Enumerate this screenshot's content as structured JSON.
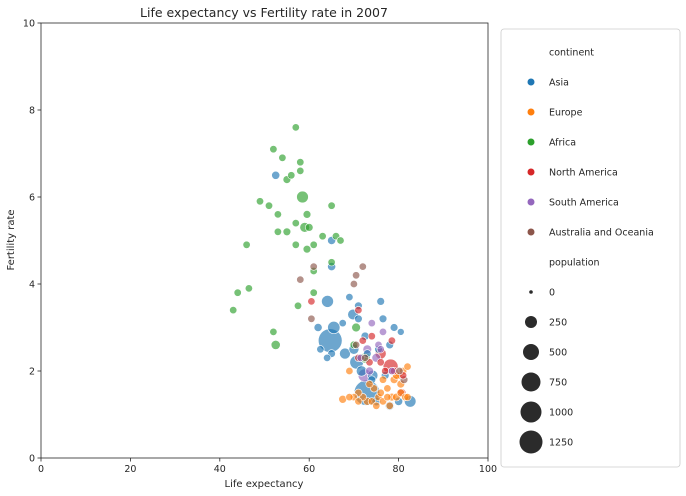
{
  "chart_data": {
    "type": "scatter",
    "title": "Life expectancy vs Fertility rate in 2007",
    "xlabel": "Life expectancy",
    "ylabel": "Fertility rate",
    "xlim": [
      0,
      100
    ],
    "ylim": [
      0,
      10
    ],
    "xticks": [
      "0",
      "20",
      "40",
      "60",
      "80",
      "100"
    ],
    "yticks": [
      "0",
      "2",
      "4",
      "6",
      "8",
      "10"
    ],
    "grid": false,
    "legend_position": "right",
    "legend": {
      "hue_title": "continent",
      "size_title": "population",
      "continents": [
        {
          "name": "Asia",
          "color": "#1f77b4"
        },
        {
          "name": "Europe",
          "color": "#ff7f0e"
        },
        {
          "name": "Africa",
          "color": "#2ca02c"
        },
        {
          "name": "North America",
          "color": "#d62728"
        },
        {
          "name": "South America",
          "color": "#9467bd"
        },
        {
          "name": "Australia and Oceania",
          "color": "#8c564b"
        }
      ],
      "sizes": [
        "0",
        "250",
        "500",
        "750",
        "1000",
        "1250"
      ]
    },
    "series": [
      {
        "name": "Asia",
        "points": [
          {
            "x": 72.9,
            "y": 1.5,
            "pop": 1318
          },
          {
            "x": 64.7,
            "y": 2.7,
            "pop": 1110
          },
          {
            "x": 70.6,
            "y": 2.2,
            "pop": 224
          },
          {
            "x": 65.5,
            "y": 3.0,
            "pop": 169
          },
          {
            "x": 64.1,
            "y": 3.6,
            "pop": 150
          },
          {
            "x": 82.6,
            "y": 1.3,
            "pop": 127
          },
          {
            "x": 71.7,
            "y": 2.0,
            "pop": 85
          },
          {
            "x": 74.2,
            "y": 1.9,
            "pop": 85
          },
          {
            "x": 69.8,
            "y": 3.3,
            "pop": 91
          },
          {
            "x": 70.0,
            "y": 2.5,
            "pop": 71
          },
          {
            "x": 68.0,
            "y": 2.4,
            "pop": 111
          },
          {
            "x": 71.0,
            "y": 3.2,
            "pop": 20
          },
          {
            "x": 75.0,
            "y": 1.3,
            "pop": 40
          },
          {
            "x": 78.0,
            "y": 1.2,
            "pop": 40
          },
          {
            "x": 80.0,
            "y": 1.3,
            "pop": 30
          },
          {
            "x": 52.5,
            "y": 6.5,
            "pop": 30
          },
          {
            "x": 62.0,
            "y": 3.0,
            "pop": 30
          },
          {
            "x": 65.0,
            "y": 5.0,
            "pop": 30
          },
          {
            "x": 65.0,
            "y": 4.4,
            "pop": 30
          },
          {
            "x": 72.5,
            "y": 2.8,
            "pop": 30
          },
          {
            "x": 76.0,
            "y": 3.6,
            "pop": 20
          },
          {
            "x": 76.5,
            "y": 3.2,
            "pop": 20
          },
          {
            "x": 79.0,
            "y": 3.0,
            "pop": 20
          },
          {
            "x": 80.5,
            "y": 2.9,
            "pop": 10
          },
          {
            "x": 78.0,
            "y": 2.6,
            "pop": 20
          },
          {
            "x": 75.5,
            "y": 2.5,
            "pop": 20
          },
          {
            "x": 73.0,
            "y": 2.4,
            "pop": 20
          },
          {
            "x": 69.0,
            "y": 3.7,
            "pop": 15
          },
          {
            "x": 71.0,
            "y": 3.5,
            "pop": 20
          },
          {
            "x": 65.0,
            "y": 2.4,
            "pop": 20
          },
          {
            "x": 64.0,
            "y": 2.3,
            "pop": 15
          },
          {
            "x": 67.5,
            "y": 3.1,
            "pop": 15
          },
          {
            "x": 62.5,
            "y": 2.5,
            "pop": 15
          },
          {
            "x": 77.0,
            "y": 1.9,
            "pop": 20
          },
          {
            "x": 74.0,
            "y": 1.8,
            "pop": 20
          }
        ]
      },
      {
        "name": "Europe",
        "points": [
          {
            "x": 74.0,
            "y": 1.3,
            "pop": 15
          },
          {
            "x": 75.5,
            "y": 1.4,
            "pop": 15
          },
          {
            "x": 76.5,
            "y": 1.3,
            "pop": 15
          },
          {
            "x": 77.5,
            "y": 1.4,
            "pop": 15
          },
          {
            "x": 78.5,
            "y": 1.4,
            "pop": 20
          },
          {
            "x": 79.5,
            "y": 1.4,
            "pop": 20
          },
          {
            "x": 80.5,
            "y": 1.5,
            "pop": 20
          },
          {
            "x": 81.5,
            "y": 1.4,
            "pop": 15
          },
          {
            "x": 80.0,
            "y": 1.9,
            "pop": 20
          },
          {
            "x": 81.0,
            "y": 2.0,
            "pop": 15
          },
          {
            "x": 82.0,
            "y": 2.1,
            "pop": 15
          },
          {
            "x": 79.0,
            "y": 1.8,
            "pop": 20
          },
          {
            "x": 80.5,
            "y": 1.7,
            "pop": 20
          },
          {
            "x": 72.0,
            "y": 1.4,
            "pop": 15
          },
          {
            "x": 71.0,
            "y": 1.5,
            "pop": 15
          },
          {
            "x": 70.0,
            "y": 1.4,
            "pop": 15
          },
          {
            "x": 69.0,
            "y": 1.4,
            "pop": 15
          },
          {
            "x": 67.5,
            "y": 1.35,
            "pop": 25
          },
          {
            "x": 73.0,
            "y": 1.3,
            "pop": 20
          },
          {
            "x": 74.5,
            "y": 1.6,
            "pop": 15
          },
          {
            "x": 76.0,
            "y": 1.5,
            "pop": 15
          },
          {
            "x": 77.5,
            "y": 1.6,
            "pop": 15
          },
          {
            "x": 78.0,
            "y": 1.2,
            "pop": 15
          },
          {
            "x": 76.5,
            "y": 1.8,
            "pop": 15
          },
          {
            "x": 79.5,
            "y": 1.9,
            "pop": 20
          },
          {
            "x": 82.0,
            "y": 1.4,
            "pop": 15
          },
          {
            "x": 69.0,
            "y": 2.0,
            "pop": 15
          },
          {
            "x": 71.0,
            "y": 1.3,
            "pop": 15
          },
          {
            "x": 73.5,
            "y": 1.7,
            "pop": 15
          },
          {
            "x": 75.0,
            "y": 1.2,
            "pop": 15
          }
        ]
      },
      {
        "name": "Africa",
        "points": [
          {
            "x": 57.0,
            "y": 7.6,
            "pop": 15
          },
          {
            "x": 52.0,
            "y": 7.1,
            "pop": 15
          },
          {
            "x": 54.0,
            "y": 6.9,
            "pop": 15
          },
          {
            "x": 58.0,
            "y": 6.8,
            "pop": 15
          },
          {
            "x": 56.0,
            "y": 6.5,
            "pop": 15
          },
          {
            "x": 55.0,
            "y": 6.4,
            "pop": 20
          },
          {
            "x": 58.0,
            "y": 6.6,
            "pop": 15
          },
          {
            "x": 58.5,
            "y": 6.0,
            "pop": 140
          },
          {
            "x": 49.0,
            "y": 5.9,
            "pop": 15
          },
          {
            "x": 51.0,
            "y": 5.8,
            "pop": 15
          },
          {
            "x": 65.0,
            "y": 5.8,
            "pop": 15
          },
          {
            "x": 53.0,
            "y": 5.6,
            "pop": 15
          },
          {
            "x": 59.5,
            "y": 5.6,
            "pop": 20
          },
          {
            "x": 57.0,
            "y": 5.4,
            "pop": 15
          },
          {
            "x": 59.0,
            "y": 5.3,
            "pop": 70
          },
          {
            "x": 60.0,
            "y": 5.3,
            "pop": 20
          },
          {
            "x": 55.0,
            "y": 5.2,
            "pop": 20
          },
          {
            "x": 53.0,
            "y": 5.2,
            "pop": 15
          },
          {
            "x": 63.0,
            "y": 5.1,
            "pop": 15
          },
          {
            "x": 66.0,
            "y": 5.1,
            "pop": 15
          },
          {
            "x": 57.0,
            "y": 4.9,
            "pop": 15
          },
          {
            "x": 61.0,
            "y": 4.9,
            "pop": 15
          },
          {
            "x": 59.5,
            "y": 4.8,
            "pop": 20
          },
          {
            "x": 46.0,
            "y": 4.9,
            "pop": 15
          },
          {
            "x": 67.0,
            "y": 5.0,
            "pop": 15
          },
          {
            "x": 65.0,
            "y": 4.5,
            "pop": 15
          },
          {
            "x": 61.0,
            "y": 4.3,
            "pop": 15
          },
          {
            "x": 46.5,
            "y": 3.9,
            "pop": 15
          },
          {
            "x": 44.0,
            "y": 3.8,
            "pop": 15
          },
          {
            "x": 61.0,
            "y": 3.8,
            "pop": 15
          },
          {
            "x": 57.5,
            "y": 3.5,
            "pop": 15
          },
          {
            "x": 43.0,
            "y": 3.4,
            "pop": 15
          },
          {
            "x": 52.0,
            "y": 2.9,
            "pop": 15
          },
          {
            "x": 52.5,
            "y": 2.6,
            "pop": 50
          },
          {
            "x": 70.5,
            "y": 3.0,
            "pop": 40
          },
          {
            "x": 72.5,
            "y": 2.3,
            "pop": 80
          },
          {
            "x": 70.0,
            "y": 2.6,
            "pop": 20
          }
        ]
      },
      {
        "name": "North America",
        "points": [
          {
            "x": 78.2,
            "y": 2.1,
            "pop": 301
          },
          {
            "x": 76.0,
            "y": 2.4,
            "pop": 108
          },
          {
            "x": 80.7,
            "y": 1.5,
            "pop": 33
          },
          {
            "x": 72.0,
            "y": 2.7,
            "pop": 15
          },
          {
            "x": 71.0,
            "y": 2.3,
            "pop": 15
          },
          {
            "x": 74.0,
            "y": 2.8,
            "pop": 15
          },
          {
            "x": 77.0,
            "y": 2.0,
            "pop": 15
          },
          {
            "x": 79.0,
            "y": 2.0,
            "pop": 15
          },
          {
            "x": 81.0,
            "y": 1.9,
            "pop": 15
          },
          {
            "x": 73.5,
            "y": 2.2,
            "pop": 15
          },
          {
            "x": 60.5,
            "y": 3.6,
            "pop": 15
          },
          {
            "x": 71.0,
            "y": 3.4,
            "pop": 15
          },
          {
            "x": 76.0,
            "y": 2.2,
            "pop": 15
          },
          {
            "x": 78.5,
            "y": 2.7,
            "pop": 15
          }
        ]
      },
      {
        "name": "South America",
        "points": [
          {
            "x": 72.4,
            "y": 1.9,
            "pop": 190
          },
          {
            "x": 75.0,
            "y": 2.3,
            "pop": 40
          },
          {
            "x": 73.0,
            "y": 2.5,
            "pop": 40
          },
          {
            "x": 75.5,
            "y": 2.6,
            "pop": 15
          },
          {
            "x": 78.5,
            "y": 2.0,
            "pop": 15
          },
          {
            "x": 74.0,
            "y": 3.1,
            "pop": 15
          },
          {
            "x": 71.5,
            "y": 2.3,
            "pop": 15
          },
          {
            "x": 76.5,
            "y": 2.9,
            "pop": 15
          },
          {
            "x": 73.5,
            "y": 2.0,
            "pop": 27
          },
          {
            "x": 76.0,
            "y": 2.5,
            "pop": 15
          }
        ]
      },
      {
        "name": "Australia and Oceania",
        "points": [
          {
            "x": 81.2,
            "y": 1.8,
            "pop": 20
          },
          {
            "x": 80.2,
            "y": 2.0,
            "pop": 15
          },
          {
            "x": 58.0,
            "y": 4.1,
            "pop": 15
          },
          {
            "x": 61.0,
            "y": 4.4,
            "pop": 15
          },
          {
            "x": 70.5,
            "y": 4.2,
            "pop": 15
          },
          {
            "x": 72.0,
            "y": 4.4,
            "pop": 15
          },
          {
            "x": 70.0,
            "y": 4.0,
            "pop": 15
          },
          {
            "x": 60.5,
            "y": 3.2,
            "pop": 15
          },
          {
            "x": 72.5,
            "y": 2.3,
            "pop": 15
          },
          {
            "x": 70.5,
            "y": 2.6,
            "pop": 15
          }
        ]
      }
    ]
  }
}
